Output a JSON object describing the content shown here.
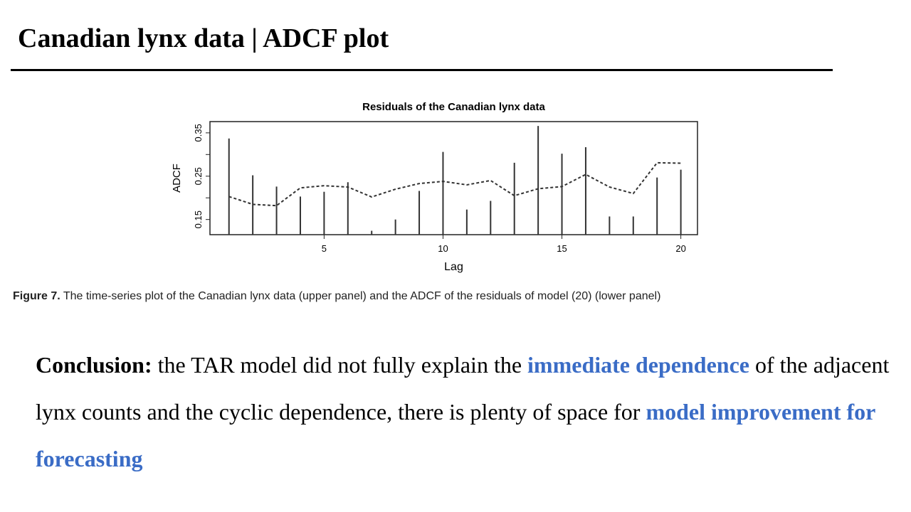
{
  "slide": {
    "title": "Canadian lynx data | ADCF plot",
    "caption_label": "Figure 7.",
    "caption_text": " The time-series plot of the Canadian lynx data (upper panel) and the ADCF of the residuals of model (20) (lower panel)",
    "conclusion": {
      "lead": "Conclusion:",
      "part1": " the TAR model did not fully explain the ",
      "highlight1": "immediate dependence",
      "part2": " of the adjacent lynx counts and the cyclic dependence, there is plenty of space for ",
      "highlight2": "model improvement for forecasting"
    },
    "highlight_color": "#3a6cc6"
  },
  "chart_data": {
    "type": "bar",
    "title": "Residuals of the Canadian lynx data",
    "xlabel": "Lag",
    "ylabel": "ADCF",
    "xlim": [
      0.2,
      20.7
    ],
    "ylim": [
      0.115,
      0.376
    ],
    "xticks": [
      5,
      10,
      15,
      20
    ],
    "yticks": [
      0.15,
      0.2,
      0.25,
      0.3,
      0.35
    ],
    "ytick_labels": [
      "0.15",
      "",
      "0.25",
      "",
      "0.35"
    ],
    "grid": false,
    "x": [
      1,
      2,
      3,
      4,
      5,
      6,
      7,
      8,
      9,
      10,
      11,
      12,
      13,
      14,
      15,
      16,
      17,
      18,
      19,
      20
    ],
    "series": [
      {
        "style": "vertical-lines",
        "values": [
          0.337,
          0.252,
          0.226,
          0.203,
          0.214,
          0.236,
          0.124,
          0.15,
          0.216,
          0.306,
          0.173,
          0.193,
          0.281,
          0.366,
          0.302,
          0.317,
          0.157,
          0.157,
          0.247,
          0.265
        ]
      },
      {
        "style": "dashed-line",
        "values": [
          0.203,
          0.185,
          0.182,
          0.223,
          0.228,
          0.225,
          0.202,
          0.22,
          0.233,
          0.238,
          0.23,
          0.24,
          0.205,
          0.221,
          0.226,
          0.254,
          0.225,
          0.21,
          0.281,
          0.28
        ]
      }
    ]
  }
}
